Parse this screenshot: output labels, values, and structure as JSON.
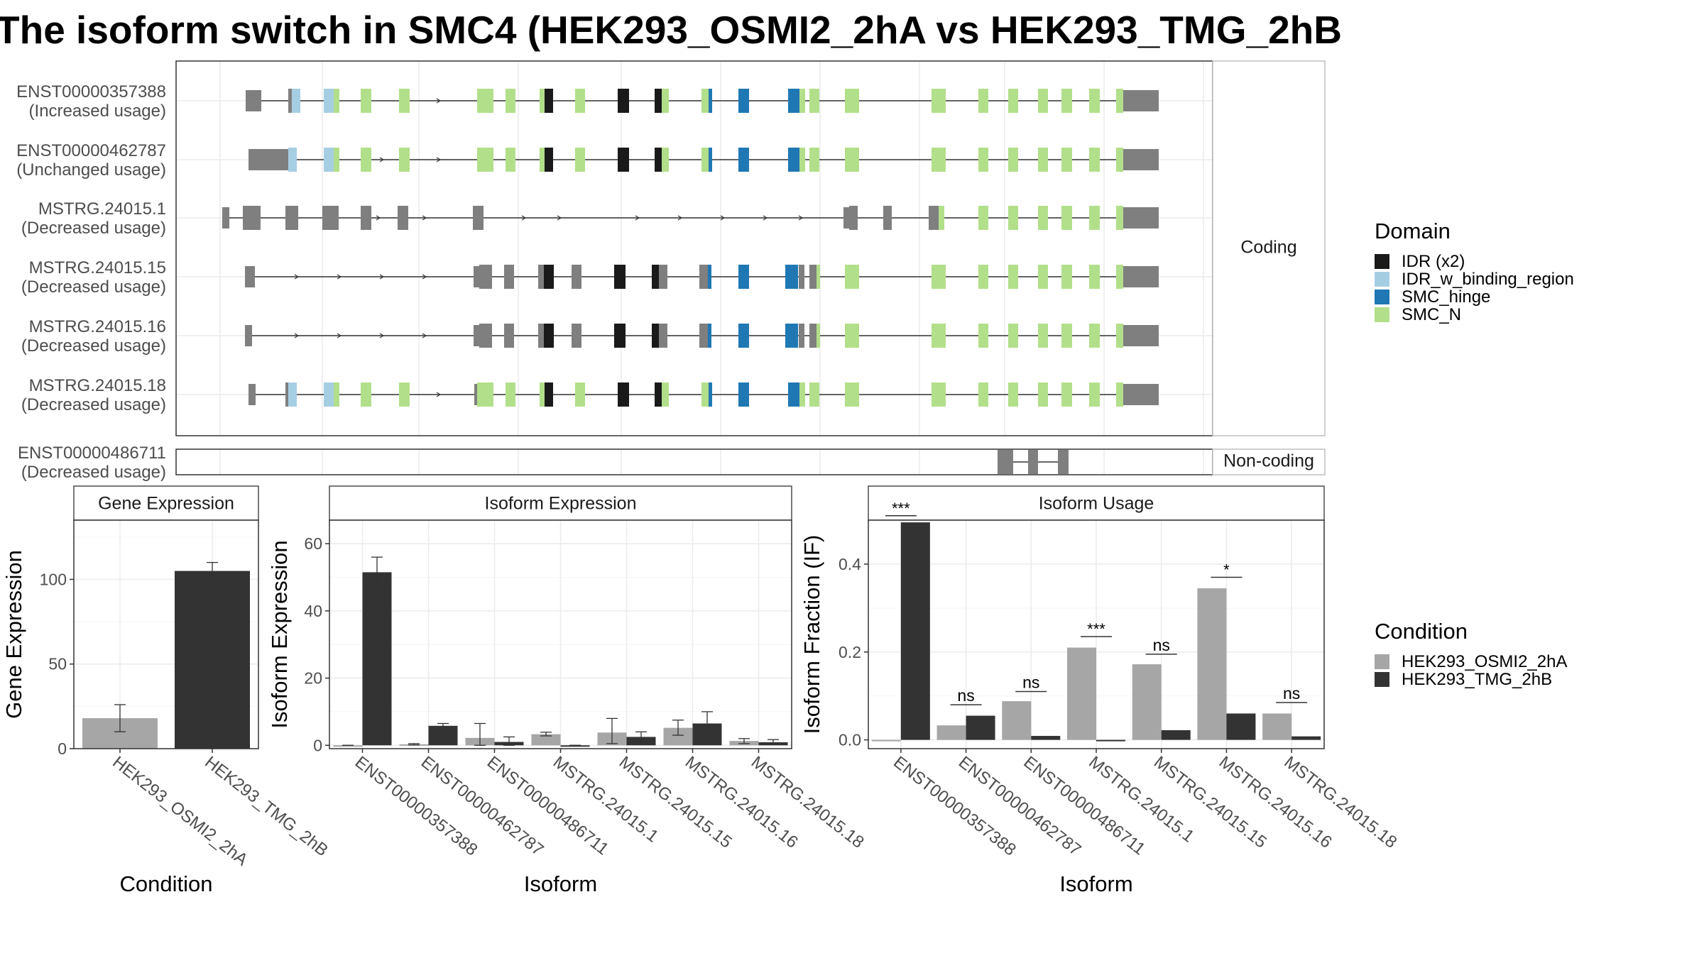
{
  "title": "The isoform switch in SMC4 (HEK293_OSMI2_2hA vs HEK293_TMG_2hB",
  "colors": {
    "idr": "#1a1a1a",
    "idr_binding": "#a6cee3",
    "smc_hinge": "#1f78b4",
    "smc_n": "#b2df8a",
    "no_domain": "#7f7f7f",
    "cond_a": "#a6a6a6",
    "cond_b": "#333333"
  },
  "chart_data": [
    {
      "type": "gene_structure",
      "facets": [
        {
          "label": "Coding",
          "rows": 6
        },
        {
          "label": "Non-coding",
          "rows": 1
        }
      ],
      "isoforms": [
        {
          "id": "ENST00000357388",
          "usage": "(Increased usage)"
        },
        {
          "id": "ENST00000462787",
          "usage": "(Unchanged usage)"
        },
        {
          "id": "MSTRG.24015.1",
          "usage": "(Decreased usage)"
        },
        {
          "id": "MSTRG.24015.15",
          "usage": "(Decreased usage)"
        },
        {
          "id": "MSTRG.24015.16",
          "usage": "(Decreased usage)"
        },
        {
          "id": "MSTRG.24015.18",
          "usage": "(Decreased usage)"
        },
        {
          "id": "ENST00000486711",
          "usage": "(Decreased usage)"
        }
      ],
      "legend": {
        "title": "Domain",
        "items": [
          {
            "label": "IDR (x2)",
            "key": "idr"
          },
          {
            "label": "IDR_w_binding_region",
            "key": "idr_binding"
          },
          {
            "label": "SMC_hinge",
            "key": "smc_hinge"
          },
          {
            "label": "SMC_N",
            "key": "smc_n"
          }
        ]
      }
    },
    {
      "type": "bar",
      "title": "Gene Expression",
      "xlabel": "Condition",
      "ylabel": "Gene Expression",
      "categories": [
        "HEK293_OSMI2_2hA",
        "HEK293_TMG_2hB"
      ],
      "values": [
        18,
        105
      ],
      "errors": [
        [
          10,
          26
        ],
        [
          99,
          110
        ]
      ],
      "ylim": [
        0,
        135
      ],
      "yticks": [
        0,
        50,
        100
      ]
    },
    {
      "type": "bar",
      "title": "Isoform Expression",
      "xlabel": "Isoform",
      "ylabel": "Isoform Expression",
      "categories": [
        "ENST00000357388",
        "ENST00000462787",
        "ENST00000486711",
        "MSTRG.24015.1",
        "MSTRG.24015.15",
        "MSTRG.24015.16",
        "MSTRG.24015.18"
      ],
      "ylim": [
        -1,
        67
      ],
      "yticks": [
        0,
        20,
        40,
        60
      ],
      "series": [
        {
          "name": "HEK293_OSMI2_2hA",
          "values": [
            0,
            0.3,
            2.2,
            3.3,
            3.8,
            5.2,
            1.3
          ],
          "errors": [
            [
              0,
              0
            ],
            [
              0.1,
              0.5
            ],
            [
              0,
              6.5
            ],
            [
              2.8,
              3.9
            ],
            [
              0.5,
              8
            ],
            [
              3,
              7.5
            ],
            [
              0.5,
              2
            ]
          ]
        },
        {
          "name": "HEK293_TMG_2hB",
          "values": [
            51.5,
            5.8,
            1.0,
            0,
            2.5,
            6.5,
            0.9
          ],
          "errors": [
            [
              47,
              56
            ],
            [
              5,
              6.5
            ],
            [
              0,
              2.5
            ],
            [
              0,
              0
            ],
            [
              1,
              4
            ],
            [
              3,
              10
            ],
            [
              0.2,
              1.7
            ]
          ]
        }
      ]
    },
    {
      "type": "bar",
      "title": "Isoform Usage",
      "xlabel": "Isoform",
      "ylabel": "Isoform Fraction (IF)",
      "categories": [
        "ENST00000357388",
        "ENST00000462787",
        "ENST00000486711",
        "MSTRG.24015.1",
        "MSTRG.24015.15",
        "MSTRG.24015.16",
        "MSTRG.24015.18"
      ],
      "ylim": [
        -0.02,
        0.5
      ],
      "yticks": [
        "0.0",
        "0.2",
        "0.4"
      ],
      "series": [
        {
          "name": "HEK293_OSMI2_2hA",
          "values": [
            0,
            0.033,
            0.088,
            0.21,
            0.172,
            0.345,
            0.06
          ]
        },
        {
          "name": "HEK293_TMG_2hB",
          "values": [
            0.495,
            0.055,
            0.009,
            0,
            0.022,
            0.06,
            0.008
          ]
        }
      ],
      "significance": [
        "***",
        "ns",
        "ns",
        "***",
        "ns",
        "*",
        "ns"
      ],
      "sig_line_at": [
        0.51,
        0.08,
        0.11,
        0.235,
        0.195,
        0.37,
        0.085
      ],
      "legend": {
        "title": "Condition",
        "items": [
          {
            "label": "HEK293_OSMI2_2hA",
            "key": "cond_a"
          },
          {
            "label": "HEK293_TMG_2hB",
            "key": "cond_b"
          }
        ]
      }
    }
  ]
}
